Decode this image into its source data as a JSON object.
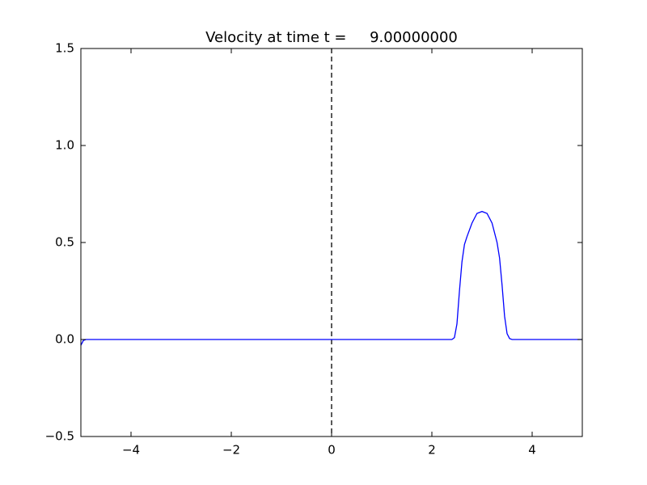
{
  "chart_data": {
    "type": "line",
    "title": "Velocity at time t =     9.00000000",
    "x": [
      -5,
      -4.95,
      -4.9,
      2.4,
      2.45,
      2.5,
      2.55,
      2.6,
      2.65,
      2.7,
      2.8,
      2.9,
      3.0,
      3.1,
      3.2,
      3.3,
      3.35,
      3.4,
      3.45,
      3.5,
      3.55,
      3.6,
      5
    ],
    "series": [
      {
        "color": "#0000ff",
        "values": [
          -0.03,
          -0.005,
          0,
          0,
          0.01,
          0.08,
          0.25,
          0.4,
          0.49,
          0.53,
          0.6,
          0.65,
          0.66,
          0.65,
          0.6,
          0.5,
          0.42,
          0.28,
          0.12,
          0.03,
          0.005,
          0,
          0
        ]
      }
    ],
    "xlim": [
      -5,
      5
    ],
    "ylim": [
      -0.5,
      1.5
    ],
    "xticks": [
      {
        "value": -4,
        "label": "−4"
      },
      {
        "value": -2,
        "label": "−2"
      },
      0,
      2,
      4
    ],
    "yticks": [
      {
        "value": -0.5,
        "label": "−0.5"
      },
      {
        "value": 0,
        "label": "0.0"
      },
      0.5,
      {
        "value": 1,
        "label": "1.0"
      },
      1.5
    ],
    "vline_x": 0,
    "grid": false
  }
}
